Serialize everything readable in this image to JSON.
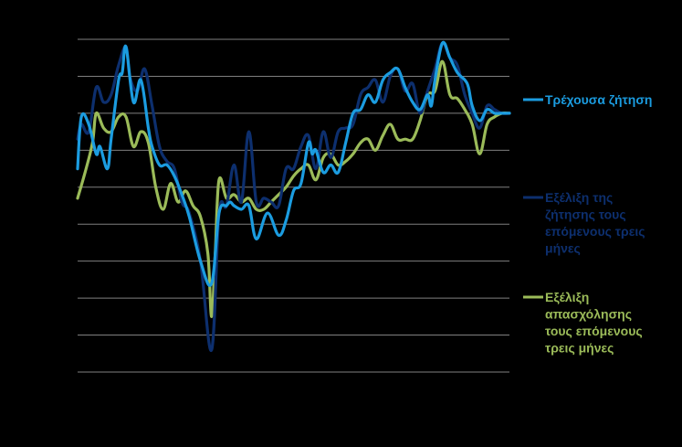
{
  "chart_data": {
    "type": "line",
    "title": "",
    "xlabel": "",
    "ylabel": "",
    "grid": true,
    "legend_position": "right",
    "ylim": [
      0,
      9
    ],
    "y_gridlines": [
      0,
      1,
      2,
      3,
      4,
      5,
      6,
      7,
      8,
      9
    ],
    "x_points": 117,
    "series": [
      {
        "name": "Τρέχουσα ζήτηση",
        "color": "#1b9ce0",
        "legend_lines": [
          "Τρέχουσα ζήτηση"
        ],
        "x": [
          0,
          1,
          3,
          5,
          6,
          8,
          9,
          11,
          12,
          13,
          15,
          17,
          19,
          20,
          22,
          24,
          26,
          28,
          30,
          33,
          36,
          38,
          40,
          41,
          42,
          44,
          46,
          48,
          51,
          54,
          56,
          58,
          60,
          62,
          63,
          64,
          66,
          68,
          70,
          72,
          74,
          76,
          78,
          80,
          82,
          84,
          86,
          88,
          90,
          92,
          94,
          95,
          96,
          98,
          100,
          102,
          104,
          105,
          106,
          108,
          110,
          112,
          114,
          116
        ],
        "values": [
          5.5,
          6.9,
          6.7,
          5.9,
          6.1,
          5.5,
          6.3,
          7.9,
          8.1,
          8.8,
          7.3,
          7.9,
          6.6,
          6.1,
          5.6,
          5.6,
          5.3,
          4.8,
          4.2,
          3.0,
          2.4,
          4.3,
          4.5,
          4.6,
          4.5,
          4.4,
          4.5,
          3.6,
          4.3,
          3.7,
          4.1,
          4.9,
          5.1,
          6.2,
          5.9,
          6.0,
          5.4,
          5.6,
          5.4,
          6.2,
          7.0,
          7.1,
          7.5,
          7.3,
          7.9,
          8.1,
          8.2,
          7.7,
          7.3,
          7.1,
          7.5,
          7.2,
          7.9,
          8.9,
          8.5,
          8.1,
          7.9,
          7.7,
          7.2,
          6.8,
          7.1,
          7.0,
          7.0,
          7.0
        ]
      },
      {
        "name": "Εξέλιξη της ζήτησης τους επόμενους τρεις μήνες",
        "color": "#0d2f6e",
        "legend_lines": [
          "Εξέλιξη της",
          "ζήτησης τους",
          "επόμενους τρεις",
          "μήνες"
        ],
        "x": [
          0,
          1,
          3,
          5,
          7,
          9,
          11,
          13,
          14,
          16,
          18,
          20,
          22,
          24,
          26,
          28,
          30,
          33,
          36,
          38,
          40,
          42,
          44,
          46,
          48,
          50,
          52,
          54,
          56,
          58,
          60,
          62,
          64,
          66,
          68,
          70,
          72,
          74,
          76,
          78,
          80,
          82,
          84,
          86,
          88,
          90,
          92,
          94,
          96,
          98,
          100,
          102,
          104,
          106,
          108,
          110,
          112,
          114,
          116
        ],
        "values": [
          6.3,
          6.7,
          6.5,
          7.7,
          7.3,
          7.5,
          8.3,
          8.8,
          8.0,
          7.6,
          8.2,
          7.2,
          6.1,
          5.7,
          5.5,
          4.6,
          4.3,
          3.0,
          0.6,
          4.3,
          4.5,
          5.6,
          4.6,
          6.5,
          4.6,
          4.7,
          4.6,
          4.5,
          5.5,
          5.5,
          6.1,
          6.4,
          5.5,
          6.5,
          5.8,
          6.5,
          6.6,
          6.7,
          7.5,
          7.7,
          7.9,
          7.3,
          8.0,
          8.2,
          7.6,
          7.8,
          7.0,
          7.6,
          8.2,
          8.9,
          8.5,
          8.3,
          7.5,
          7.0,
          6.6,
          7.2,
          7.1,
          7.0,
          7.0
        ]
      },
      {
        "name": "Εξέλιξη απασχόλησης τους επόμενους τρεις μήνες",
        "color": "#9bbb59",
        "legend_lines": [
          "Εξέλιξη",
          "απασχόλησης",
          "τους επόμενους",
          "τρεις μήνες"
        ],
        "x": [
          0,
          2,
          4,
          5,
          7,
          9,
          11,
          13,
          15,
          17,
          19,
          21,
          23,
          25,
          27,
          29,
          31,
          33,
          35,
          36,
          37,
          38,
          40,
          42,
          44,
          46,
          48,
          50,
          52,
          54,
          56,
          58,
          60,
          62,
          64,
          66,
          68,
          70,
          72,
          74,
          76,
          78,
          80,
          82,
          84,
          86,
          88,
          90,
          92,
          94,
          96,
          98,
          100,
          102,
          104,
          106,
          108,
          110,
          112,
          114,
          116
        ],
        "values": [
          4.7,
          5.4,
          6.2,
          7.0,
          6.6,
          6.5,
          6.9,
          6.9,
          6.1,
          6.5,
          6.2,
          5.0,
          4.4,
          5.1,
          4.6,
          4.9,
          4.5,
          4.2,
          3.2,
          1.5,
          3.3,
          5.2,
          4.7,
          4.8,
          4.6,
          4.7,
          4.4,
          4.4,
          4.6,
          4.8,
          5.0,
          5.3,
          5.5,
          5.6,
          5.2,
          5.8,
          5.9,
          5.6,
          5.7,
          5.9,
          6.2,
          6.3,
          6.0,
          6.4,
          6.7,
          6.3,
          6.3,
          6.3,
          6.8,
          7.5,
          7.6,
          8.4,
          7.5,
          7.4,
          7.1,
          6.7,
          5.9,
          6.7,
          6.9,
          7.0,
          7.0
        ]
      }
    ]
  }
}
